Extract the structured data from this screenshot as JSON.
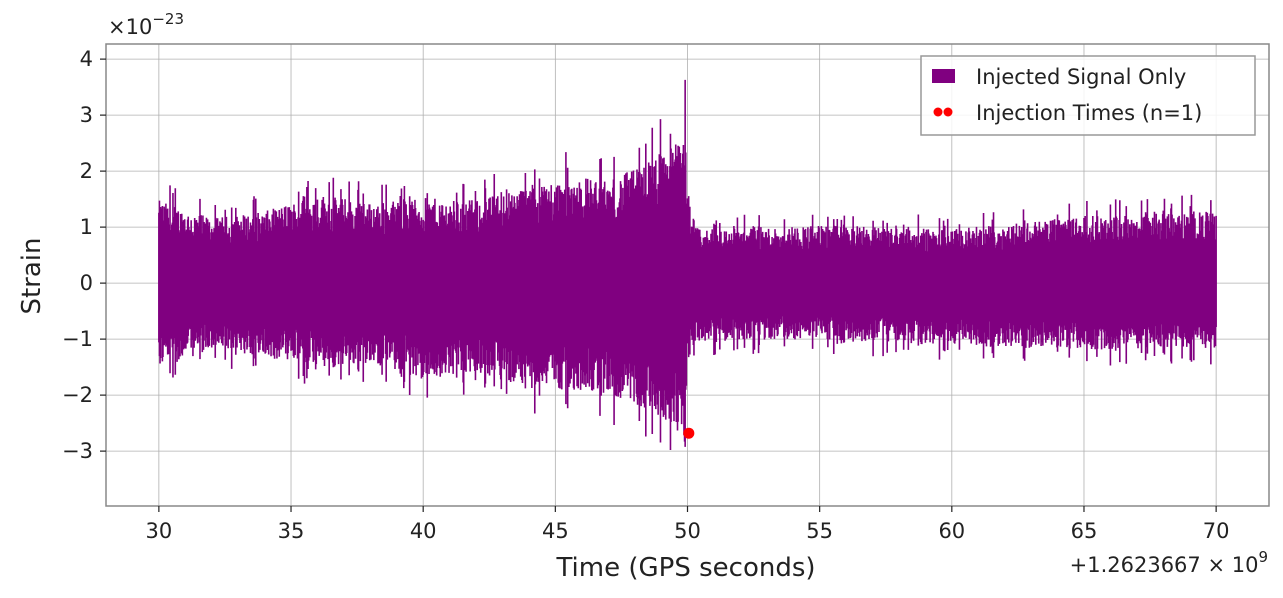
{
  "chart_data": {
    "type": "line",
    "title": "",
    "xlabel": "Time (GPS seconds)",
    "ylabel": "Strain",
    "x_offset_label": "+1.2623667 × 10",
    "x_offset_exponent": "9",
    "y_scale_label": "×10",
    "y_scale_exponent": "−23",
    "xlim": [
      28,
      72
    ],
    "ylim": [
      -3.98,
      4.27
    ],
    "x_ticks": [
      30,
      35,
      40,
      45,
      50,
      55,
      60,
      65,
      70
    ],
    "x_tick_labels": [
      "30",
      "35",
      "40",
      "45",
      "50",
      "55",
      "60",
      "65",
      "70"
    ],
    "y_ticks": [
      -3,
      -2,
      -1,
      0,
      1,
      2,
      3,
      4
    ],
    "y_tick_labels": [
      "−3",
      "−2",
      "−1",
      "0",
      "1",
      "2",
      "3",
      "4"
    ],
    "grid": true,
    "legend_position": "top-right",
    "series": [
      {
        "name": "Injected Signal Only",
        "color": "#800080",
        "envelope": {
          "x": [
            30,
            32,
            34,
            36,
            38,
            40,
            42,
            44,
            46,
            47,
            48,
            49,
            49.5,
            49.9,
            50,
            50.1,
            50.5,
            55,
            60,
            65,
            70
          ],
          "upper": [
            1.85,
            1.45,
            1.6,
            2.0,
            1.8,
            1.9,
            1.85,
            2.2,
            2.4,
            2.3,
            2.55,
            2.95,
            3.1,
            3.9,
            2.0,
            1.3,
            1.2,
            1.3,
            1.2,
            1.5,
            1.6
          ],
          "lower": [
            -1.9,
            -1.5,
            -1.65,
            -1.9,
            -1.8,
            -2.15,
            -2.0,
            -2.35,
            -2.4,
            -2.5,
            -2.7,
            -3.0,
            -3.3,
            -3.6,
            -1.4,
            -1.3,
            -1.3,
            -1.25,
            -1.4,
            -1.5,
            -1.45
          ]
        }
      },
      {
        "name": "Injection Times (n=1)",
        "color": "#ff0000",
        "points": [
          {
            "x": 50.05,
            "y": -2.68
          }
        ]
      }
    ]
  }
}
